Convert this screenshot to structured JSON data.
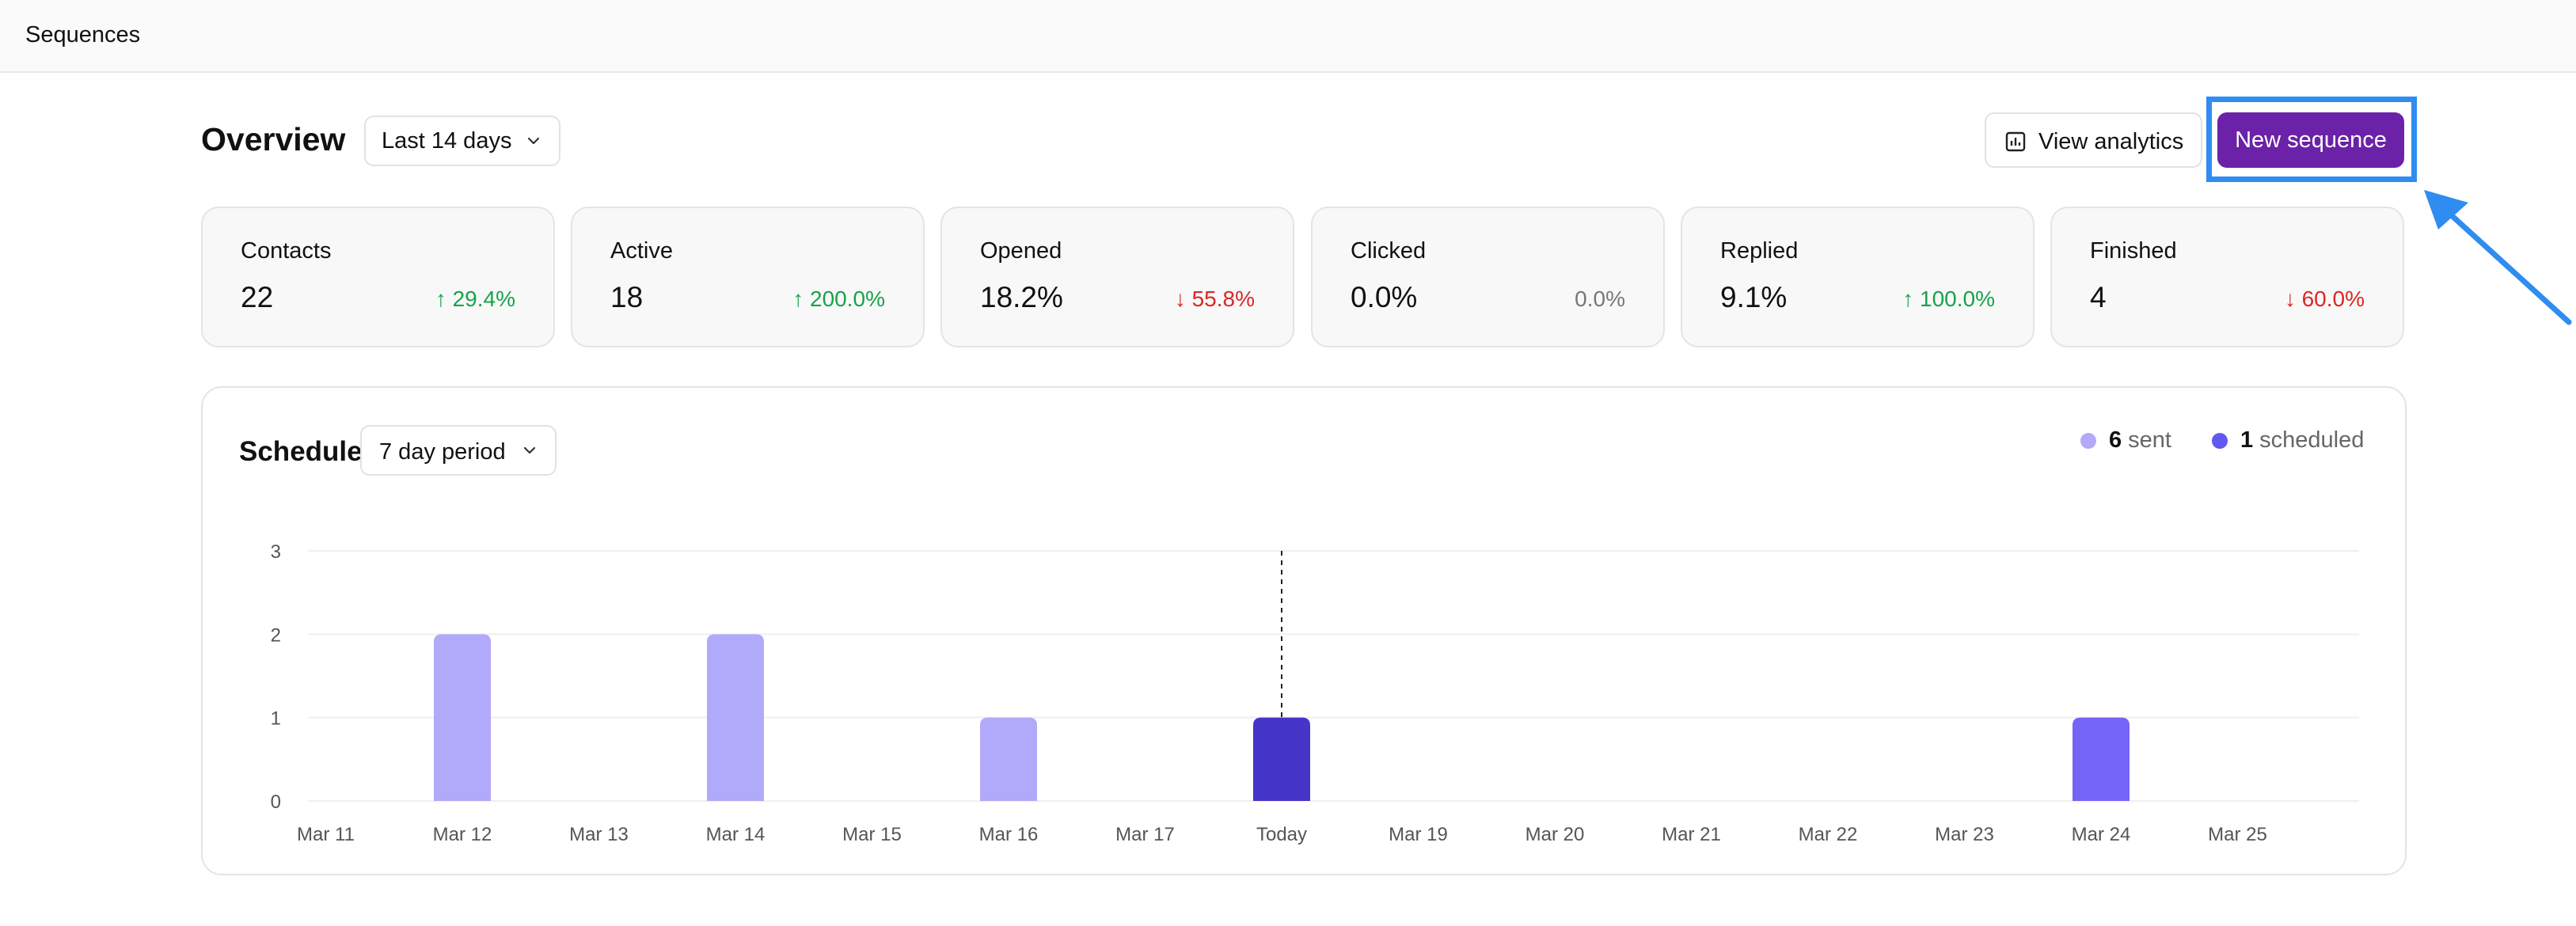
{
  "app": {
    "title": "Sequences"
  },
  "overview": {
    "title": "Overview",
    "range": "Last 14 days",
    "view_analytics": "View analytics",
    "new_sequence": "New sequence"
  },
  "stats": [
    {
      "label": "Contacts",
      "value": "22",
      "delta": "29.4%",
      "direction": "up"
    },
    {
      "label": "Active",
      "value": "18",
      "delta": "200.0%",
      "direction": "up"
    },
    {
      "label": "Opened",
      "value": "18.2%",
      "delta": "55.8%",
      "direction": "down"
    },
    {
      "label": "Clicked",
      "value": "0.0%",
      "delta": "0.0%",
      "direction": "flat"
    },
    {
      "label": "Replied",
      "value": "9.1%",
      "delta": "100.0%",
      "direction": "up"
    },
    {
      "label": "Finished",
      "value": "4",
      "delta": "60.0%",
      "direction": "down"
    }
  ],
  "schedule": {
    "title": "Schedule",
    "period": "7 day period",
    "legend": {
      "sent_count": "6",
      "sent_label": "sent",
      "scheduled_count": "1",
      "scheduled_label": "scheduled"
    }
  },
  "colors": {
    "accent": "#6b21a8",
    "highlight": "#2f8cf0",
    "sent": "#b1a9f9",
    "today": "#4535c9",
    "scheduled": "#7465f7",
    "up": "#16a34a",
    "down": "#dc2626"
  },
  "chart_data": {
    "type": "bar",
    "categories": [
      "Mar 11",
      "Mar 12",
      "Mar 13",
      "Mar 14",
      "Mar 15",
      "Mar 16",
      "Mar 17",
      "Today",
      "Mar 19",
      "Mar 20",
      "Mar 21",
      "Mar 22",
      "Mar 23",
      "Mar 24",
      "Mar 25"
    ],
    "values": [
      0,
      2,
      0,
      2,
      0,
      1,
      0,
      1,
      0,
      0,
      0,
      0,
      0,
      1,
      0
    ],
    "bar_kind": [
      "sent",
      "sent",
      "sent",
      "sent",
      "sent",
      "sent",
      "sent",
      "today",
      "scheduled",
      "scheduled",
      "scheduled",
      "scheduled",
      "scheduled",
      "scheduled",
      "scheduled"
    ],
    "today_marker": "Today",
    "yticks": [
      0,
      1,
      2,
      3
    ],
    "ylim": [
      0,
      3
    ],
    "grid": true
  }
}
